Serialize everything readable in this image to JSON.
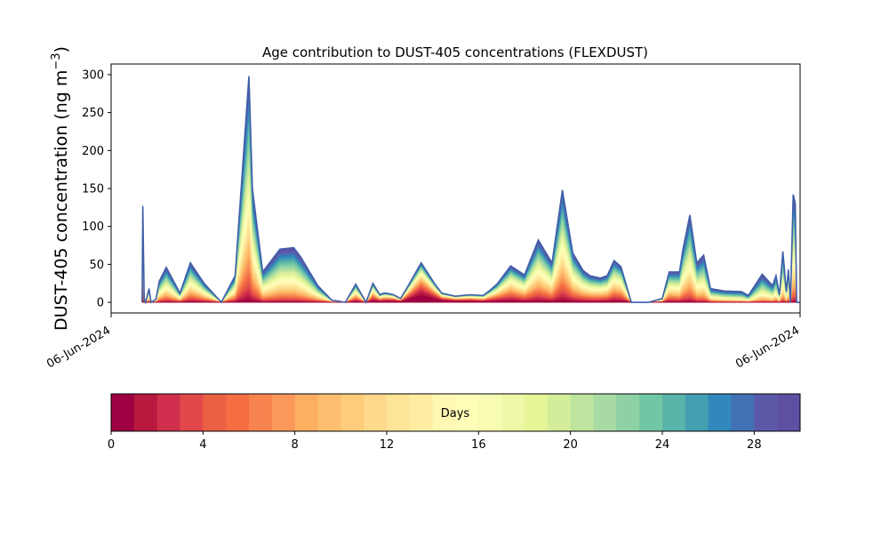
{
  "chart_data": [
    {
      "type": "area",
      "stacked": true,
      "title": "Age contribution to DUST-405 concentrations (FLEXDUST)",
      "ylabel": "DUST-405 concentration (ng m⁻³)",
      "ylabel_main": "DUST-405 concentration (ng m",
      "ylabel_sup": "−3",
      "ylabel_close": ")",
      "ylim": [
        -14,
        314
      ],
      "yticks": [
        0,
        50,
        100,
        150,
        200,
        250,
        300
      ],
      "xlim": [
        0,
        100
      ],
      "xticks": [
        {
          "pos": 0,
          "label": "06-Jun-2024"
        },
        {
          "pos": 100,
          "label": "06-Jun-2024"
        }
      ],
      "x": [
        4.5,
        4.6,
        4.8,
        5.0,
        5.5,
        5.8,
        6.5,
        7.0,
        8.0,
        10.0,
        11.5,
        13.5,
        16.0,
        18.0,
        20.0,
        20.5,
        22.0,
        24.5,
        26.5,
        27.5,
        30.0,
        32.0,
        34.0,
        35.5,
        37.0,
        38.0,
        39.0,
        39.5,
        40.0,
        41.0,
        42.0,
        43.0,
        45.0,
        47.0,
        48.0,
        50.0,
        52.0,
        54.0,
        55.0,
        56.0,
        58.0,
        60.0,
        62.0,
        64.0,
        65.5,
        67.0,
        68.5,
        69.5,
        71.0,
        72.0,
        73.0,
        74.0,
        75.5,
        78.0,
        80.0,
        81.0,
        82.5,
        83.0,
        84.0,
        85.0,
        86.0,
        87.0,
        89.0,
        91.5,
        92.5,
        94.5,
        96.0,
        96.5,
        97.0,
        97.5,
        98.0,
        98.3,
        98.6,
        99.0,
        99.3,
        99.5,
        99.8,
        100.0
      ],
      "total": [
        0,
        127,
        5,
        0,
        18,
        0,
        4,
        28,
        46,
        12,
        52,
        25,
        0,
        35,
        298,
        150,
        40,
        70,
        72,
        60,
        22,
        3,
        0,
        24,
        0,
        25,
        10,
        12,
        12,
        10,
        5,
        20,
        52,
        24,
        12,
        8,
        10,
        9,
        16,
        24,
        48,
        36,
        82,
        52,
        148,
        65,
        42,
        35,
        32,
        35,
        55,
        47,
        0,
        0,
        5,
        40,
        40,
        70,
        115,
        52,
        62,
        18,
        15,
        14,
        9,
        37,
        22,
        35,
        10,
        67,
        14,
        43,
        0,
        142,
        130,
        0,
        0,
        0
      ],
      "age_bins_days": [
        0,
        1,
        2,
        3,
        4,
        5,
        6,
        7,
        8,
        9,
        10,
        11,
        12,
        13,
        14,
        15,
        16,
        17,
        18,
        19,
        20,
        21,
        22,
        23,
        24,
        25,
        26,
        27,
        28,
        29,
        30
      ],
      "colorbar": {
        "label": "Days",
        "ticks": [
          0,
          4,
          8,
          12,
          16,
          20,
          24,
          28
        ],
        "min": 0,
        "max": 30,
        "colors": [
          "#9e0142",
          "#b8193f",
          "#cf2f4c",
          "#e1484a",
          "#ea6043",
          "#f46d43",
          "#f7844e",
          "#fa9859",
          "#fdae61",
          "#fdbf6f",
          "#fecc7b",
          "#fed98b",
          "#fee496",
          "#ffeea1",
          "#fff8b3",
          "#fefeb8",
          "#f7fcb2",
          "#eef8a6",
          "#e6f598",
          "#d4ed9b",
          "#bee5a0",
          "#a8dba4",
          "#8ed1a4",
          "#71c6a5",
          "#5ab4aa",
          "#449fb0",
          "#3288bd",
          "#4271b4",
          "#5c5aa8",
          "#5e4fa2"
        ]
      },
      "line_color": "#3f5fa8"
    }
  ]
}
